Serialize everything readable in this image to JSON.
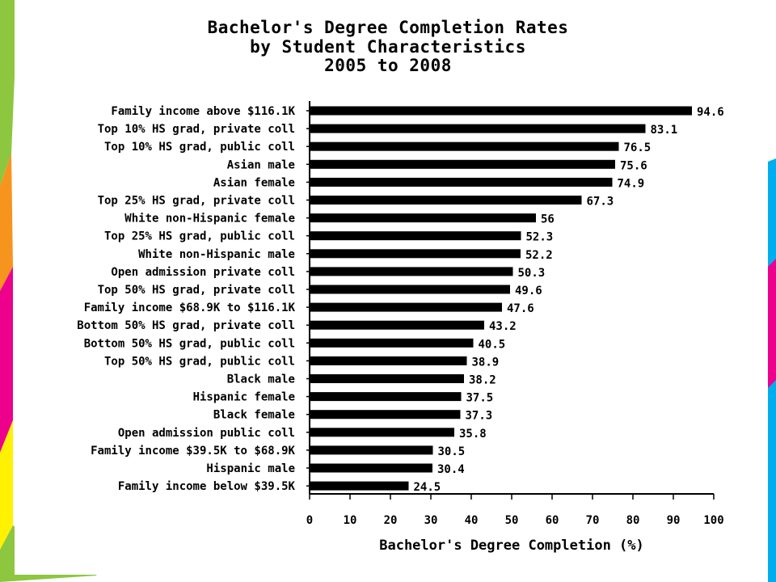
{
  "slide": {
    "colors": {
      "background": "#ffffff",
      "accent_green": "#8dc63f",
      "accent_orange": "#f7941d",
      "accent_pink": "#ec008c",
      "accent_blue": "#00aeef",
      "bars": "#000000"
    }
  },
  "chart_data": {
    "type": "bar",
    "orientation": "horizontal",
    "title_lines": [
      "Bachelor's Degree Completion Rates",
      "by Student Characteristics",
      "2005 to 2008"
    ],
    "xlabel": "Bachelor's Degree Completion (%)",
    "ylabel": "",
    "xlim": [
      0,
      100
    ],
    "x_ticks": [
      "0",
      "10",
      "20",
      "30",
      "40",
      "50",
      "60",
      "70",
      "80",
      "90",
      "100"
    ],
    "grid": false,
    "legend": "none",
    "categories": [
      "Family income above $116.1K",
      "Top 10% HS grad, private coll",
      "Top 10% HS grad, public coll",
      "Asian male",
      "Asian female",
      "Top 25% HS grad, private coll",
      "White non-Hispanic female",
      "Top 25% HS grad, public coll",
      "White non-Hispanic male",
      "Open admission private coll",
      "Top 50% HS grad, private coll",
      "Family income $68.9K to $116.1K",
      "Bottom 50% HS grad, private coll",
      "Bottom 50% HS grad, public coll",
      "Top 50% HS grad, public coll",
      "Black male",
      "Hispanic female",
      "Black female",
      "Open admission public coll",
      "Family income $39.5K to $68.9K",
      "Hispanic male",
      "Family income below $39.5K"
    ],
    "values": [
      94.6,
      83.1,
      76.5,
      75.6,
      74.9,
      67.3,
      56,
      52.3,
      52.2,
      50.3,
      49.6,
      47.6,
      43.2,
      40.5,
      38.9,
      38.2,
      37.5,
      37.3,
      35.8,
      30.5,
      30.4,
      24.5
    ],
    "value_labels": [
      "94.6",
      "83.1",
      "76.5",
      "75.6",
      "74.9",
      "67.3",
      "56",
      "52.3",
      "52.2",
      "50.3",
      "49.6",
      "47.6",
      "43.2",
      "40.5",
      "38.9",
      "38.2",
      "37.5",
      "37.3",
      "35.8",
      "30.5",
      "30.4",
      "24.5"
    ]
  }
}
